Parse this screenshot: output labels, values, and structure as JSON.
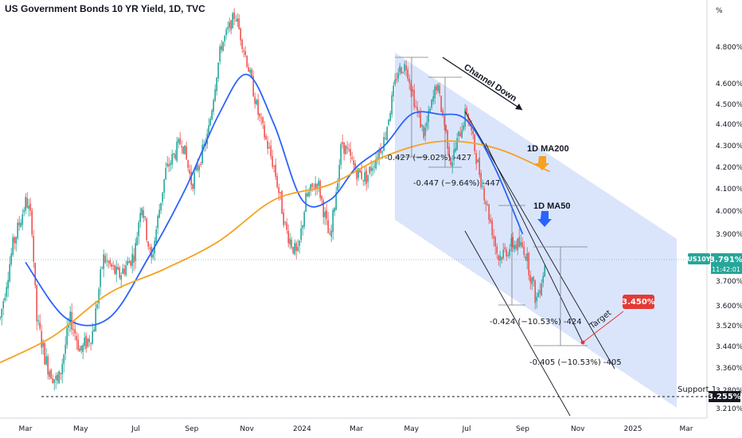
{
  "chart_data": {
    "type": "candlestick",
    "title": "US Government Bonds 10 YR Yield, 1D, TVC",
    "unit_label": "%",
    "y_ticks": [
      "4.800%",
      "4.600%",
      "4.500%",
      "4.400%",
      "4.300%",
      "4.200%",
      "4.100%",
      "4.000%",
      "3.900%",
      "3.700%",
      "3.600%",
      "3.520%",
      "3.440%",
      "3.360%",
      "3.280%",
      "3.210%"
    ],
    "y_tick_values": [
      4.8,
      4.6,
      4.5,
      4.4,
      4.3,
      4.2,
      4.1,
      4.0,
      3.9,
      3.7,
      3.6,
      3.52,
      3.44,
      3.36,
      3.28,
      3.21
    ],
    "x_ticks": [
      "Mar",
      "May",
      "Jul",
      "Sep",
      "Nov",
      "2024",
      "Mar",
      "May",
      "Jul",
      "Sep",
      "Nov",
      "2025",
      "Mar"
    ],
    "x_tick_dates": [
      "2023-03-01",
      "2023-05-01",
      "2023-07-01",
      "2023-09-01",
      "2023-11-01",
      "2024-01-01",
      "2024-03-01",
      "2024-05-01",
      "2024-07-01",
      "2024-09-01",
      "2024-11-01",
      "2025-01-01",
      "2025-03-01"
    ],
    "price_path": [
      [
        "2023-02-01",
        3.55
      ],
      [
        "2023-02-15",
        3.85
      ],
      [
        "2023-03-02",
        4.05
      ],
      [
        "2023-03-08",
        3.95
      ],
      [
        "2023-03-13",
        3.55
      ],
      [
        "2023-03-24",
        3.38
      ],
      [
        "2023-04-06",
        3.3
      ],
      [
        "2023-04-20",
        3.55
      ],
      [
        "2023-05-01",
        3.42
      ],
      [
        "2023-05-15",
        3.5
      ],
      [
        "2023-05-26",
        3.8
      ],
      [
        "2023-06-12",
        3.72
      ],
      [
        "2023-06-30",
        3.82
      ],
      [
        "2023-07-07",
        4.05
      ],
      [
        "2023-07-18",
        3.78
      ],
      [
        "2023-08-03",
        4.18
      ],
      [
        "2023-08-21",
        4.33
      ],
      [
        "2023-09-01",
        4.12
      ],
      [
        "2023-09-19",
        4.35
      ],
      [
        "2023-10-03",
        4.8
      ],
      [
        "2023-10-19",
        4.98
      ],
      [
        "2023-11-01",
        4.72
      ],
      [
        "2023-11-14",
        4.44
      ],
      [
        "2023-12-01",
        4.2
      ],
      [
        "2023-12-14",
        3.92
      ],
      [
        "2023-12-27",
        3.8
      ],
      [
        "2024-01-05",
        4.05
      ],
      [
        "2024-01-18",
        4.14
      ],
      [
        "2024-02-01",
        3.86
      ],
      [
        "2024-02-14",
        4.32
      ],
      [
        "2024-03-01",
        4.18
      ],
      [
        "2024-03-12",
        4.15
      ],
      [
        "2024-04-01",
        4.33
      ],
      [
        "2024-04-16",
        4.67
      ],
      [
        "2024-04-25",
        4.7
      ],
      [
        "2024-05-06",
        4.48
      ],
      [
        "2024-05-15",
        4.35
      ],
      [
        "2024-05-29",
        4.6
      ],
      [
        "2024-06-14",
        4.22
      ],
      [
        "2024-07-01",
        4.47
      ],
      [
        "2024-07-16",
        4.16
      ],
      [
        "2024-08-05",
        3.8
      ],
      [
        "2024-08-22",
        3.86
      ],
      [
        "2024-09-03",
        3.84
      ],
      [
        "2024-09-16",
        3.62
      ],
      [
        "2024-09-27",
        3.79
      ]
    ],
    "series": [
      {
        "name": "1D MA50",
        "color": "#2962ff",
        "points": [
          [
            "2023-03-01",
            3.78
          ],
          [
            "2023-04-15",
            3.55
          ],
          [
            "2023-06-01",
            3.55
          ],
          [
            "2023-07-15",
            3.8
          ],
          [
            "2023-08-25",
            4.1
          ],
          [
            "2023-10-01",
            4.45
          ],
          [
            "2023-11-01",
            4.65
          ],
          [
            "2023-12-01",
            4.4
          ],
          [
            "2024-01-01",
            4.05
          ],
          [
            "2024-02-01",
            4.05
          ],
          [
            "2024-03-01",
            4.2
          ],
          [
            "2024-04-01",
            4.3
          ],
          [
            "2024-05-01",
            4.45
          ],
          [
            "2024-06-01",
            4.45
          ],
          [
            "2024-07-01",
            4.42
          ],
          [
            "2024-08-01",
            4.2
          ],
          [
            "2024-09-01",
            3.9
          ]
        ]
      },
      {
        "name": "1D MA200",
        "color": "#f7a120",
        "points": [
          [
            "2023-02-01",
            3.38
          ],
          [
            "2023-04-01",
            3.48
          ],
          [
            "2023-06-01",
            3.65
          ],
          [
            "2023-08-01",
            3.75
          ],
          [
            "2023-10-01",
            3.87
          ],
          [
            "2023-12-01",
            4.05
          ],
          [
            "2024-02-01",
            4.12
          ],
          [
            "2024-04-01",
            4.25
          ],
          [
            "2024-06-01",
            4.32
          ],
          [
            "2024-08-01",
            4.29
          ],
          [
            "2024-10-01",
            4.18
          ]
        ]
      }
    ],
    "annotations": [
      {
        "text": "Channel Down"
      },
      {
        "text": "1D MA200"
      },
      {
        "text": "1D MA50"
      },
      {
        "text": "-0.427 (−9.02%) -427"
      },
      {
        "text": "-0.447 (−9.64%) -447"
      },
      {
        "text": "-0.424 (−10.53%) -424"
      },
      {
        "text": "-0.405 (−10.53%) -405"
      },
      {
        "text": "Target"
      },
      {
        "text": "Support 1"
      }
    ],
    "target_value": "3.450%",
    "support_value": "3.255%",
    "current": {
      "symbol": "US10Y",
      "price": "3.791%",
      "countdown": "11:42:01"
    },
    "colors": {
      "up": "#26a69a",
      "down": "#ef5350",
      "channel": "#bcd0f9",
      "target": "#e53935"
    }
  }
}
